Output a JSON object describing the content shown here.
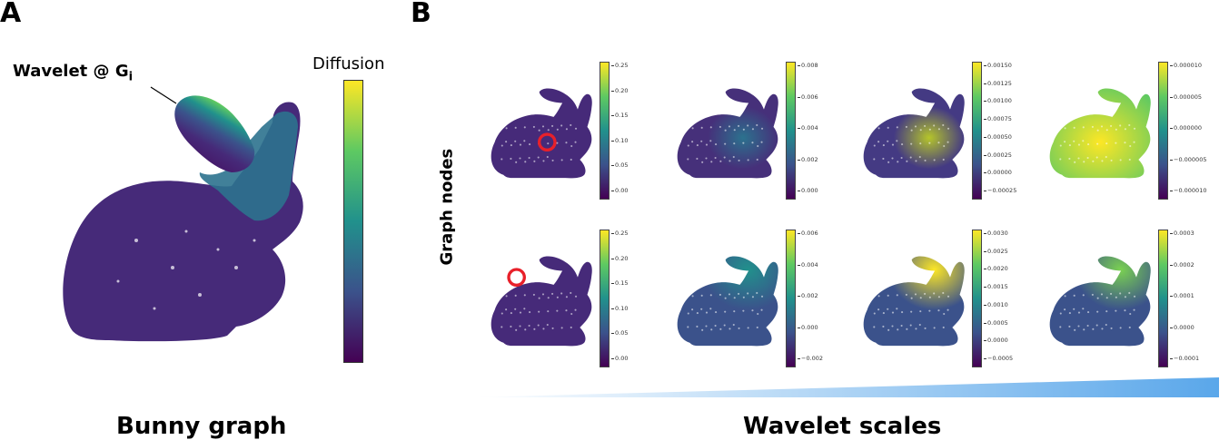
{
  "panel_a": {
    "letter": "A",
    "wavelet_label": "Wavelet @ G",
    "wavelet_sub": "i",
    "colorbar_label": "Diffusion",
    "caption": "Bunny graph"
  },
  "panel_b": {
    "letter": "B",
    "y_label": "Graph nodes",
    "caption": "Wavelet scales",
    "rows": [
      {
        "cells": [
          {
            "ticks": [
              "0.25",
              "0.20",
              "0.15",
              "0.10",
              "0.05",
              "0.00"
            ]
          },
          {
            "ticks": [
              "0.008",
              "0.006",
              "0.004",
              "0.002",
              "0.000"
            ]
          },
          {
            "ticks": [
              "0.00150",
              "0.00125",
              "0.00100",
              "0.00075",
              "0.00050",
              "0.00025",
              "0.00000",
              "−0.00025"
            ]
          },
          {
            "ticks": [
              "0.000010",
              "0.000005",
              "0.000000",
              "−0.000005",
              "−0.000010"
            ]
          }
        ]
      },
      {
        "cells": [
          {
            "ticks": [
              "0.25",
              "0.20",
              "0.15",
              "0.10",
              "0.05",
              "0.00"
            ]
          },
          {
            "ticks": [
              "0.006",
              "0.004",
              "0.002",
              "0.000",
              "−0.002"
            ]
          },
          {
            "ticks": [
              "0.0030",
              "0.0025",
              "0.0020",
              "0.0015",
              "0.0010",
              "0.0005",
              "0.0000",
              "−0.0005"
            ]
          },
          {
            "ticks": [
              "0.0003",
              "0.0002",
              "0.0001",
              "0.0000",
              "−0.0001"
            ]
          }
        ]
      }
    ]
  },
  "colors": {
    "viridis_dark": "#440154",
    "viridis_blue": "#3b528b",
    "viridis_teal": "#21918c",
    "viridis_green": "#5ec962",
    "viridis_yellow": "#fde725",
    "marker_red": "#e8202a",
    "scale_bar": "#5aa7ea"
  }
}
